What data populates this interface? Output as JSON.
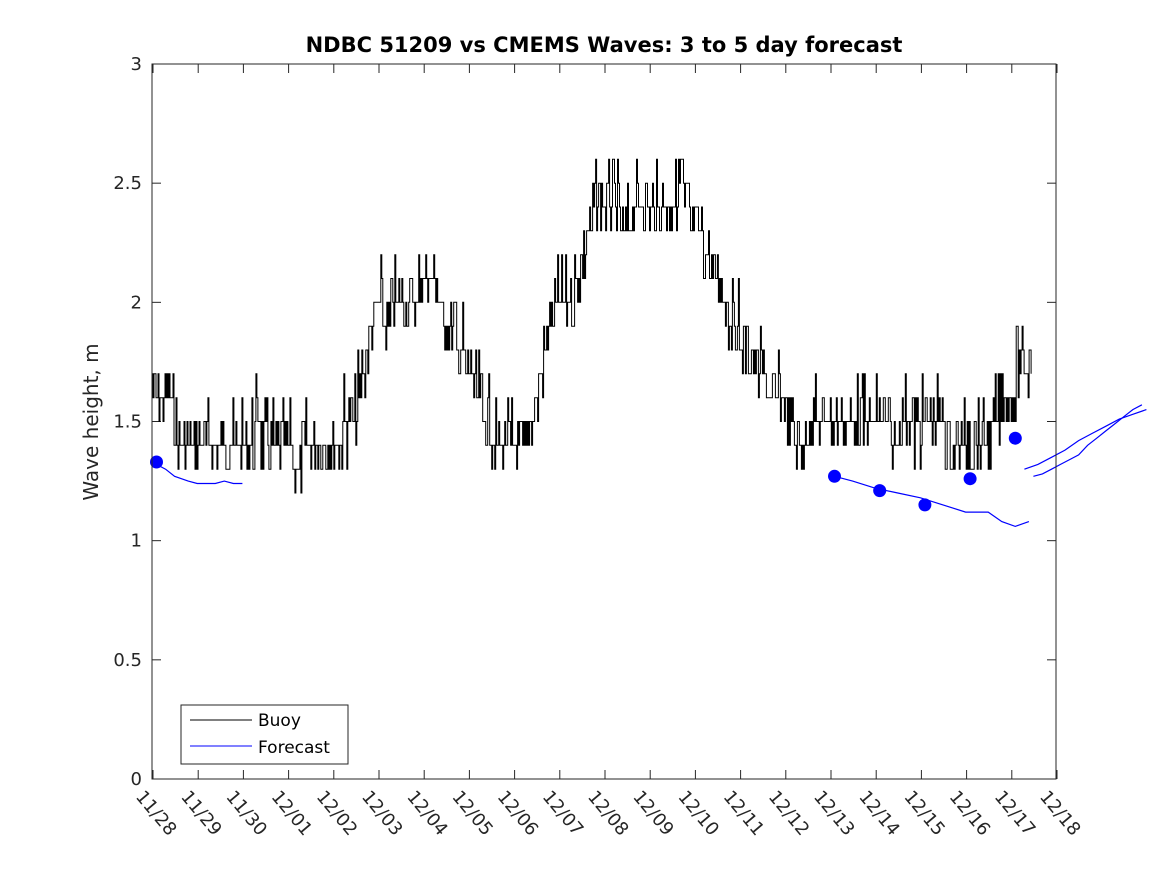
{
  "chart_data": {
    "type": "line",
    "title": "NDBC 51209 vs CMEMS Waves: 3 to 5 day forecast",
    "xlabel": "",
    "ylabel": "Wave height, m",
    "ylim": [
      0,
      3
    ],
    "xlim": [
      0,
      20
    ],
    "yticks": [
      0,
      0.5,
      1,
      1.5,
      2,
      2.5,
      3
    ],
    "ytick_labels": [
      "0",
      "0.5",
      "1",
      "1.5",
      "2",
      "2.5",
      "3"
    ],
    "xticks": [
      0,
      1,
      2,
      3,
      4,
      5,
      6,
      7,
      8,
      9,
      10,
      11,
      12,
      13,
      14,
      15,
      16,
      17,
      18,
      19,
      20
    ],
    "xtick_labels": [
      "11/28",
      "11/29",
      "11/30",
      "12/01",
      "12/02",
      "12/03",
      "12/04",
      "12/05",
      "12/06",
      "12/07",
      "12/08",
      "12/09",
      "12/10",
      "12/11",
      "12/12",
      "12/13",
      "12/14",
      "12/15",
      "12/16",
      "12/17",
      "12/18"
    ],
    "x_units": "days since 11/28",
    "legend": {
      "placement": "bottom-left",
      "entries": [
        "Buoy",
        "Forecast"
      ]
    },
    "series": [
      {
        "name": "Buoy",
        "color": "#000000",
        "x": [
          0.0,
          0.15,
          0.35,
          0.5,
          0.6,
          0.8,
          1.0,
          1.2,
          1.4,
          1.6,
          1.8,
          2.0,
          2.2,
          2.4,
          2.6,
          2.8,
          3.0,
          3.2,
          3.4,
          3.6,
          3.8,
          4.0,
          4.2,
          4.4,
          4.6,
          4.8,
          5.0,
          5.2,
          5.4,
          5.6,
          5.8,
          6.0,
          6.2,
          6.4,
          6.6,
          6.8,
          7.0,
          7.2,
          7.4,
          7.6,
          7.8,
          8.0,
          8.2,
          8.4,
          8.6,
          8.8,
          9.0,
          9.2,
          9.4,
          9.6,
          9.8,
          10.0,
          10.2,
          10.4,
          10.6,
          10.8,
          11.0,
          11.2,
          11.4,
          11.6,
          11.7,
          11.8,
          12.0,
          12.2,
          12.4,
          12.6,
          12.8,
          13.0,
          13.2,
          13.4,
          13.6,
          13.8,
          14.0,
          14.2,
          14.4,
          14.6,
          14.8,
          15.0,
          15.2,
          15.4,
          15.6,
          15.8,
          16.0,
          16.2,
          16.4,
          16.6,
          16.8,
          17.0,
          17.2,
          17.4,
          17.6,
          17.8,
          18.0,
          18.2,
          18.4,
          18.6,
          18.8,
          19.0,
          19.2,
          19.4
        ],
        "y": [
          1.65,
          1.55,
          1.6,
          1.5,
          1.35,
          1.4,
          1.4,
          1.35,
          1.4,
          1.35,
          1.4,
          1.4,
          1.45,
          1.45,
          1.4,
          1.35,
          1.4,
          1.3,
          1.4,
          1.35,
          1.4,
          1.4,
          1.45,
          1.45,
          1.6,
          1.85,
          2.0,
          1.9,
          2.0,
          2.05,
          2.0,
          2.1,
          2.15,
          1.95,
          1.9,
          1.8,
          1.7,
          1.6,
          1.5,
          1.4,
          1.35,
          1.35,
          1.4,
          1.5,
          1.7,
          1.9,
          2.0,
          1.95,
          2.1,
          2.25,
          2.4,
          2.35,
          2.4,
          2.3,
          2.35,
          2.4,
          2.35,
          2.45,
          2.35,
          2.4,
          2.6,
          2.4,
          2.3,
          2.25,
          2.1,
          2.05,
          1.9,
          1.85,
          1.8,
          1.7,
          1.65,
          1.6,
          1.55,
          1.45,
          1.4,
          1.5,
          1.45,
          1.45,
          1.5,
          1.5,
          1.45,
          1.5,
          1.45,
          1.5,
          1.4,
          1.5,
          1.45,
          1.45,
          1.5,
          1.45,
          1.45,
          1.4,
          1.45,
          1.45,
          1.4,
          1.45,
          1.55,
          1.6,
          1.7,
          1.75
        ]
      },
      {
        "name": "Forecast",
        "color": "#0000ff",
        "segments": [
          {
            "x": [
              0.1,
              0.3,
              0.5,
              0.8,
              1.0,
              1.2,
              1.4,
              1.6,
              1.8,
              2.0
            ],
            "y": [
              1.32,
              1.3,
              1.27,
              1.25,
              1.24,
              1.24,
              1.24,
              1.25,
              1.24,
              1.24
            ]
          },
          {
            "x": [
              15.1,
              15.5,
              16.0,
              16.5,
              17.0,
              17.5,
              18.0,
              18.5,
              18.8,
              19.1,
              19.4
            ],
            "y": [
              1.27,
              1.25,
              1.22,
              1.2,
              1.18,
              1.15,
              1.12,
              1.12,
              1.08,
              1.06,
              1.08
            ]
          },
          {
            "x": [
              19.5,
              19.7,
              19.9,
              20.1,
              20.3,
              20.5,
              20.7,
              20.9,
              21.1,
              21.3,
              21.5,
              21.7,
              21.9
            ],
            "y": [
              1.27,
              1.28,
              1.3,
              1.32,
              1.34,
              1.36,
              1.4,
              1.43,
              1.46,
              1.49,
              1.52,
              1.55,
              1.57
            ]
          }
        ],
        "markers": {
          "x": [
            0.1,
            15.1,
            16.1,
            17.1,
            18.1,
            19.1
          ],
          "y": [
            1.33,
            1.27,
            1.21,
            1.15,
            1.26,
            1.43
          ]
        }
      }
    ]
  }
}
